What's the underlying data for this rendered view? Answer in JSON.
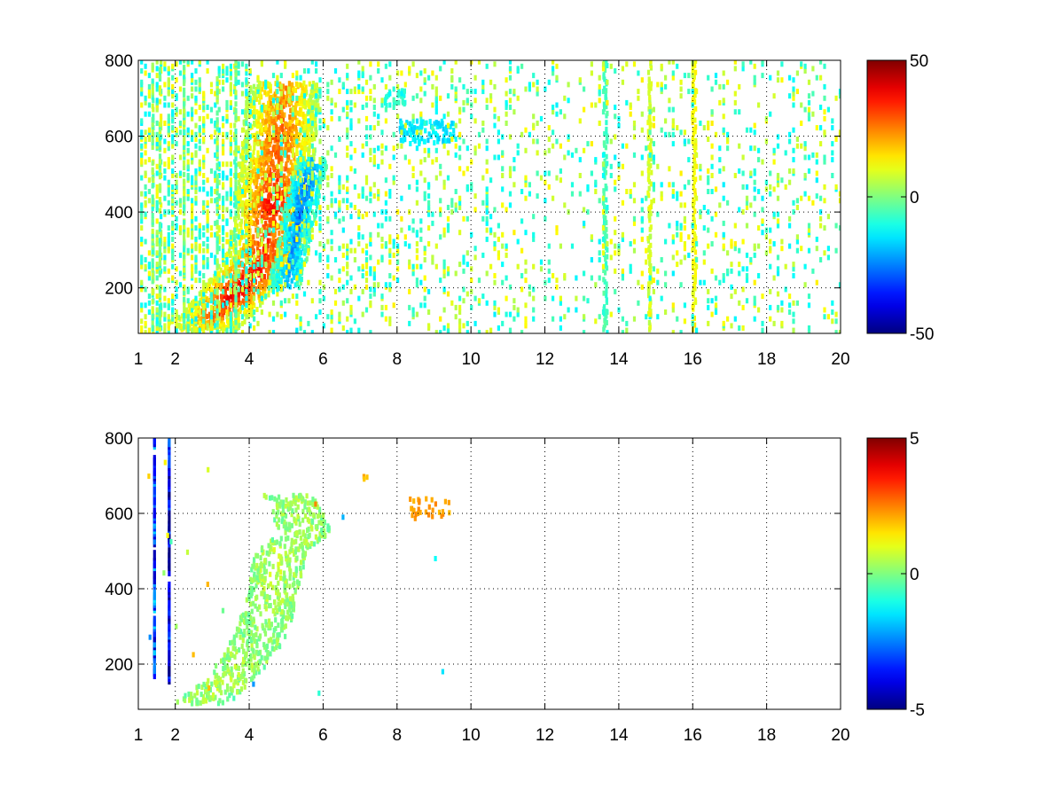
{
  "chart_data": [
    {
      "type": "heatmap",
      "title": "",
      "xlabel": "",
      "ylabel": "",
      "xlim": [
        1,
        20
      ],
      "ylim": [
        80,
        800
      ],
      "x_ticks": [
        1,
        2,
        4,
        6,
        8,
        10,
        12,
        14,
        16,
        18,
        20
      ],
      "y_ticks": [
        200,
        400,
        600,
        800
      ],
      "grid": true,
      "colormap": "jet",
      "clim": [
        -50,
        50
      ],
      "colorbar_ticks": [
        -50,
        0,
        50
      ],
      "features": [
        {
          "kind": "ridge",
          "points": [
            [
              2.6,
              90,
              15
            ],
            [
              3.1,
              130,
              32
            ],
            [
              3.6,
              190,
              42
            ],
            [
              4.0,
              230,
              40
            ],
            [
              4.3,
              270,
              35
            ],
            [
              4.5,
              350,
              30
            ],
            [
              4.6,
              430,
              38
            ],
            [
              4.7,
              520,
              30
            ],
            [
              4.8,
              620,
              28
            ],
            [
              4.9,
              740,
              22
            ]
          ]
        },
        {
          "kind": "trough",
          "points": [
            [
              4.9,
              200,
              -20
            ],
            [
              5.1,
              280,
              -22
            ],
            [
              5.3,
              380,
              -25
            ],
            [
              5.5,
              470,
              -28
            ],
            [
              5.7,
              540,
              -20
            ]
          ]
        },
        {
          "kind": "patch",
          "x": [
            8.0,
            9.5
          ],
          "y": [
            580,
            640
          ],
          "value": -15
        },
        {
          "kind": "patch",
          "x": [
            7.6,
            8.2
          ],
          "y": [
            680,
            720
          ],
          "value": -8
        },
        {
          "kind": "stripe",
          "x": 16.0,
          "value": 12
        },
        {
          "kind": "stripe",
          "x": 13.6,
          "value": -6
        },
        {
          "kind": "stripe",
          "x": 14.8,
          "value": 8
        }
      ]
    },
    {
      "type": "heatmap",
      "title": "",
      "xlabel": "",
      "ylabel": "",
      "xlim": [
        1,
        20
      ],
      "ylim": [
        80,
        800
      ],
      "x_ticks": [
        1,
        2,
        4,
        6,
        8,
        10,
        12,
        14,
        16,
        18,
        20
      ],
      "y_ticks": [
        200,
        400,
        600,
        800
      ],
      "grid": true,
      "colormap": "jet",
      "clim": [
        -5,
        5
      ],
      "colorbar_ticks": [
        -5,
        0,
        5
      ],
      "features": [
        {
          "kind": "ridge",
          "points": [
            [
              2.6,
              95,
              0.3
            ],
            [
              3.2,
              140,
              0.4
            ],
            [
              3.8,
              200,
              0.5
            ],
            [
              4.3,
              280,
              0.2
            ],
            [
              4.6,
              380,
              0.5
            ],
            [
              4.8,
              500,
              0.6
            ],
            [
              5.0,
              650,
              0.4
            ],
            [
              5.5,
              550,
              0.3
            ]
          ]
        },
        {
          "kind": "patch",
          "x": [
            8.3,
            9.4
          ],
          "y": [
            580,
            640
          ],
          "value": 2.2
        },
        {
          "kind": "patch",
          "x": [
            7.0,
            7.3
          ],
          "y": [
            690,
            710
          ],
          "value": 2.0
        },
        {
          "kind": "stripe",
          "x": 1.4,
          "value": -3
        },
        {
          "kind": "stripe",
          "x": 1.8,
          "value": -4
        }
      ]
    }
  ]
}
